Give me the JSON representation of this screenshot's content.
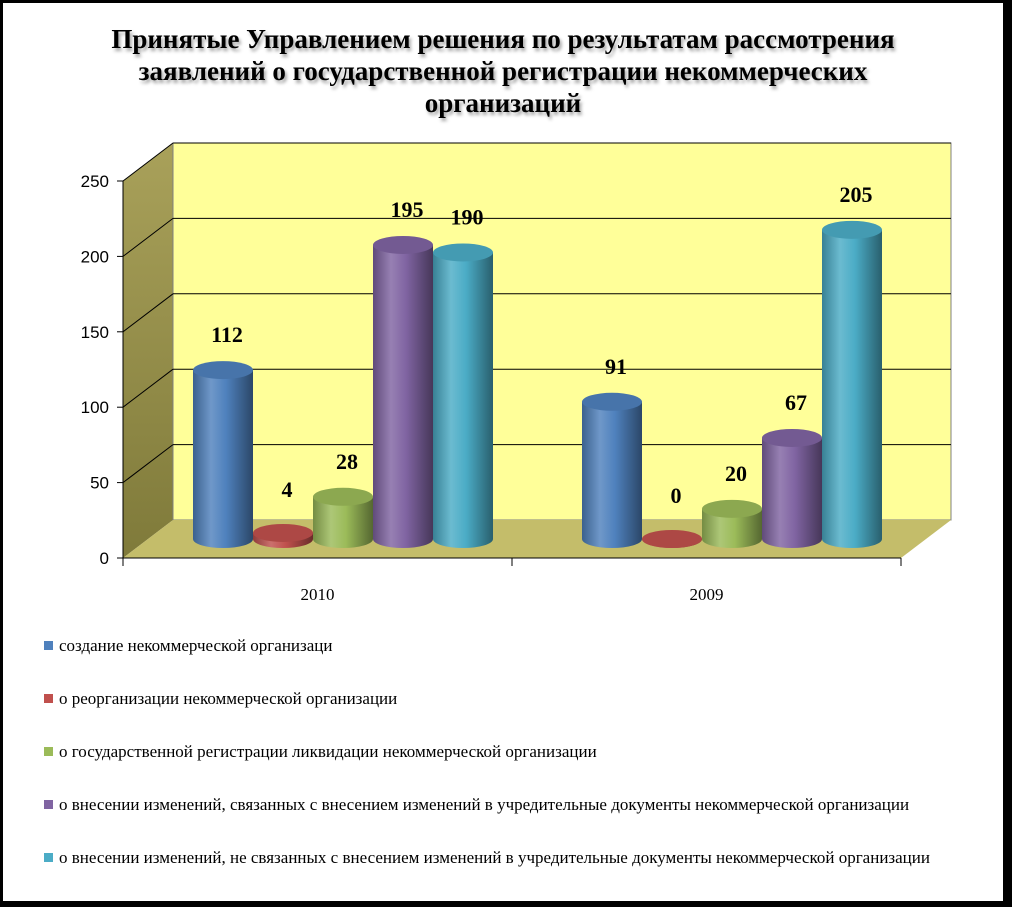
{
  "chart_data": {
    "type": "bar",
    "title": "Принятые Управлением решения по результатам рассмотрения заявлений о государственной регистрации некоммерческих организаций",
    "categories": [
      "2010",
      "2009"
    ],
    "yticks": [
      "0",
      "50",
      "100",
      "150",
      "200",
      "250"
    ],
    "ylim": [
      0,
      250
    ],
    "grid": true,
    "legend_position": "bottom",
    "series": [
      {
        "name": "создание некоммерческой организаци",
        "values": [
          112,
          91
        ],
        "color": "#4f81bd"
      },
      {
        "name": "о реорганизации некоммерческой организации",
        "values": [
          4,
          0
        ],
        "color": "#c0504d"
      },
      {
        "name": "о государственной регистрации ликвидации некоммерческой организации",
        "values": [
          28,
          20
        ],
        "color": "#9bbb59"
      },
      {
        "name": "о внесении изменений, связанных с внесением изменений в учредительные документы некоммерческой организации",
        "values": [
          195,
          67
        ],
        "color": "#8064a2"
      },
      {
        "name": "о внесении изменений, не связанных с внесением изменений в учредительные документы некоммерческой организации",
        "values": [
          190,
          205
        ],
        "color": "#4bacc6"
      }
    ],
    "data_labels": [
      [
        "112",
        "91"
      ],
      [
        "4",
        "0"
      ],
      [
        "28",
        "20"
      ],
      [
        "195",
        "67"
      ],
      [
        "190",
        "205"
      ]
    ],
    "wall_color": "#ffff99",
    "floor_color": "#c4bd6a"
  }
}
